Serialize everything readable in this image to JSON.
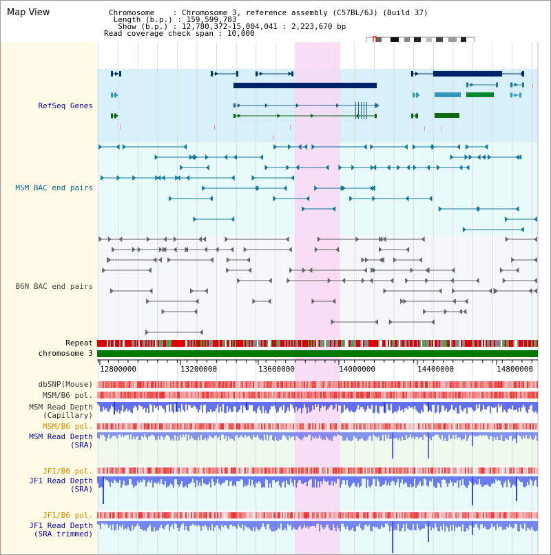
{
  "title": "Map View",
  "info": {
    "chromosome_label": "Chromosome",
    "chromosome_value": "Chromosome 3, reference assembly (C57BL/6J) (Build 37)",
    "length_label": "Length (b.p.)",
    "length_value": "159,599,783",
    "show_label": "Show (b.p.)",
    "show_value": "12,780,372-15,004,041 : 2,223,670 bp",
    "coverage_label": "Read coverage check span",
    "coverage_value": "10,000"
  },
  "tracks": {
    "refseq": "RefSeq Genes",
    "msm_bac": "MSM BAC end pairs",
    "b6n_bac": "B6N BAC end pairs",
    "repeat": "Repeat",
    "chromosome": "chromosome 3",
    "dbsnp": "dbSNP(Mouse)",
    "msm_b6_pol_1": "MSM/B6 pol.",
    "msm_depth_cap": "MSM Read Depth\n(Capillary)",
    "msm_b6_pol_2": "MSM/B6 pol.",
    "msm_depth_sra": "MSM Read Depth\n(SRA)",
    "jf1_b6_pol_1": "JF1/B6 pol.",
    "jf1_depth_sra": "JF1 Read Depth\n(SRA)",
    "jf1_b6_pol_2": "JF1/B6 pol.",
    "jf1_depth_trim": "JF1 Read Depth\n(SRA trimmed)"
  },
  "axis_ticks": [
    "12800000",
    "13200000",
    "13600000",
    "14000000",
    "14400000",
    "14800000"
  ],
  "colors": {
    "highlight": "#f8d8f4",
    "refseq_bg": "#d8f0fa",
    "msm_bg": "#e8fafa",
    "b6n_bg": "#f5f8f8",
    "label_blue": "#0000aa",
    "label_orange": "#dd8800",
    "label_teal": "#006688",
    "label_gray": "#444444",
    "chrom_green": "#007700",
    "depth_blue": "#3344ee"
  }
}
